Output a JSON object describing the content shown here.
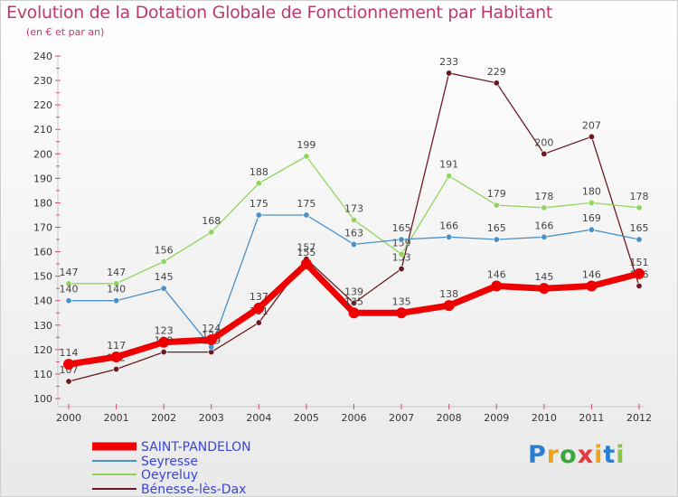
{
  "title": "Evolution de la Dotation Globale de Fonctionnement par Habitant",
  "subtitle": "(en € et par an)",
  "chart_data": {
    "type": "line",
    "x": [
      "2000",
      "2001",
      "2002",
      "2003",
      "2004",
      "2005",
      "2006",
      "2007",
      "2008",
      "2009",
      "2010",
      "2011",
      "2012"
    ],
    "ylim": [
      100,
      240
    ],
    "yticks": [
      100,
      110,
      120,
      130,
      140,
      150,
      160,
      170,
      180,
      190,
      200,
      210,
      220,
      230,
      240
    ],
    "grid": false,
    "legend_position": "bottom-left",
    "series": [
      {
        "name": "SAINT-PANDELON",
        "color": "#ee0000",
        "values": [
          114,
          117,
          123,
          124,
          137,
          155,
          135,
          135,
          138,
          146,
          145,
          146,
          151
        ]
      },
      {
        "name": "Seyresse",
        "color": "#4a8fc6",
        "values": [
          140,
          140,
          145,
          121,
          175,
          175,
          163,
          165,
          166,
          165,
          166,
          169,
          165
        ]
      },
      {
        "name": "Oeyreluy",
        "color": "#8fd65a",
        "values": [
          147,
          147,
          156,
          168,
          188,
          199,
          173,
          159,
          191,
          179,
          178,
          180,
          178
        ]
      },
      {
        "name": "Bénesse-lès-Dax",
        "color": "#6b1a22",
        "values": [
          107,
          112,
          119,
          119,
          131,
          157,
          139,
          153,
          233,
          229,
          200,
          207,
          146
        ]
      }
    ]
  },
  "logo": {
    "letters": [
      "P",
      "r",
      "o",
      "x",
      "i",
      "t",
      "i"
    ],
    "colors": [
      "#2a7fd0",
      "#f2a21a",
      "#3aa83a",
      "#e23a3a",
      "#f2a21a",
      "#2a7fd0",
      "#8bc34a"
    ]
  }
}
